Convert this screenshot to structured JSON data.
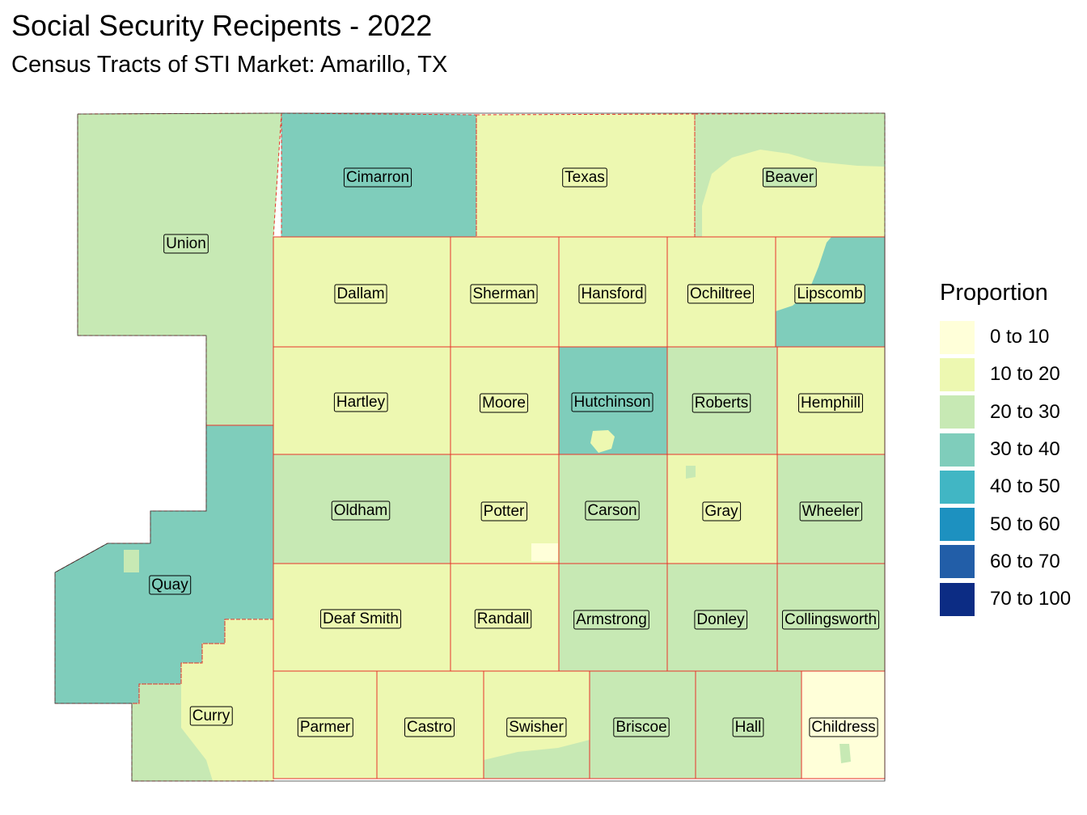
{
  "title": "Social Security Recipents - 2022",
  "subtitle": "Census Tracts of STI Market: Amarillo, TX",
  "legend": {
    "title": "Proportion",
    "items": [
      {
        "label": "0 to 10",
        "color": "#ffffd9"
      },
      {
        "label": "10 to 20",
        "color": "#edf8b1"
      },
      {
        "label": "20 to 30",
        "color": "#c7e9b4"
      },
      {
        "label": "30 to 40",
        "color": "#7fcdbb"
      },
      {
        "label": "40 to 50",
        "color": "#41b6c4"
      },
      {
        "label": "50 to 60",
        "color": "#1d91c0"
      },
      {
        "label": "60 to 70",
        "color": "#225ea8"
      },
      {
        "label": "70 to 100",
        "color": "#0c2c84"
      }
    ]
  },
  "border_color": "#e8332a",
  "counties": [
    {
      "name": "Union",
      "class": "20 to 30"
    },
    {
      "name": "Cimarron",
      "class": "30 to 40"
    },
    {
      "name": "Texas",
      "class": "10 to 20"
    },
    {
      "name": "Beaver",
      "class": "20 to 30"
    },
    {
      "name": "Dallam",
      "class": "10 to 20"
    },
    {
      "name": "Sherman",
      "class": "10 to 20"
    },
    {
      "name": "Hansford",
      "class": "10 to 20"
    },
    {
      "name": "Ochiltree",
      "class": "10 to 20"
    },
    {
      "name": "Lipscomb",
      "class": "10 to 20"
    },
    {
      "name": "Hartley",
      "class": "10 to 20"
    },
    {
      "name": "Moore",
      "class": "10 to 20"
    },
    {
      "name": "Hutchinson",
      "class": "30 to 40"
    },
    {
      "name": "Roberts",
      "class": "20 to 30"
    },
    {
      "name": "Hemphill",
      "class": "10 to 20"
    },
    {
      "name": "Quay",
      "class": "30 to 40"
    },
    {
      "name": "Oldham",
      "class": "20 to 30"
    },
    {
      "name": "Potter",
      "class": "10 to 20"
    },
    {
      "name": "Carson",
      "class": "20 to 30"
    },
    {
      "name": "Gray",
      "class": "10 to 20"
    },
    {
      "name": "Wheeler",
      "class": "20 to 30"
    },
    {
      "name": "Deaf Smith",
      "class": "10 to 20"
    },
    {
      "name": "Randall",
      "class": "10 to 20"
    },
    {
      "name": "Armstrong",
      "class": "20 to 30"
    },
    {
      "name": "Donley",
      "class": "20 to 30"
    },
    {
      "name": "Collingsworth",
      "class": "20 to 30"
    },
    {
      "name": "Curry",
      "class": "10 to 20"
    },
    {
      "name": "Parmer",
      "class": "10 to 20"
    },
    {
      "name": "Castro",
      "class": "10 to 20"
    },
    {
      "name": "Swisher",
      "class": "10 to 20"
    },
    {
      "name": "Briscoe",
      "class": "20 to 30"
    },
    {
      "name": "Hall",
      "class": "20 to 30"
    },
    {
      "name": "Childress",
      "class": "0 to 10"
    }
  ],
  "tract_overrides": [
    {
      "county": "Beaver",
      "class": "10 to 20"
    },
    {
      "county": "Lipscomb",
      "class": "30 to 40"
    },
    {
      "county": "Hutchinson",
      "class": "10 to 20"
    },
    {
      "county": "Potter",
      "class": "0 to 10"
    },
    {
      "county": "Quay",
      "class": "20 to 30"
    },
    {
      "county": "Curry",
      "class": "20 to 30"
    },
    {
      "county": "Swisher",
      "class": "20 to 30"
    },
    {
      "county": "Childress",
      "class": "20 to 30"
    },
    {
      "county": "Gray",
      "class": "20 to 30"
    }
  ]
}
